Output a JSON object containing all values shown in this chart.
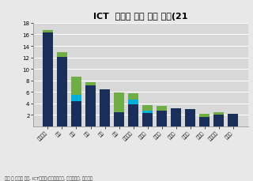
{
  "title": "ICT  서비스 수출 상위 국가(21",
  "categories": [
    "아일랜드",
    "인도",
    "이북",
    "독일",
    "중국",
    "영국",
    "네덜란드",
    "프랑스",
    "스웨덴",
    "스위스",
    "스페인",
    "벌기에",
    "이스라엘",
    "이탈리"
  ],
  "dark_blue": [
    16.3,
    12.1,
    4.4,
    7.2,
    6.5,
    2.5,
    3.9,
    2.4,
    2.8,
    3.1,
    3.0,
    1.7,
    2.1,
    2.2
  ],
  "cyan": [
    0.0,
    0.0,
    1.1,
    0.0,
    0.0,
    0.0,
    0.7,
    0.3,
    0.0,
    0.0,
    0.0,
    0.0,
    0.0,
    0.0
  ],
  "green": [
    0.5,
    0.8,
    3.1,
    0.5,
    0.0,
    3.4,
    1.2,
    1.0,
    0.8,
    0.0,
    0.0,
    0.5,
    0.4,
    0.0
  ],
  "color_dark": "#1a2e5a",
  "color_cyan": "#00b0d8",
  "color_green": "#70ad47",
  "ylim": [
    0,
    18
  ],
  "yticks": [
    2,
    4,
    6,
    8,
    10,
    12,
    14,
    16,
    18
  ],
  "footnote": "수출 중 점유율 기준, ICT서비스(컴퓨터서비스, 정보서비스, 통신서비",
  "bg_color": "#e8e8e8",
  "plot_bg": "#d8d8d8"
}
